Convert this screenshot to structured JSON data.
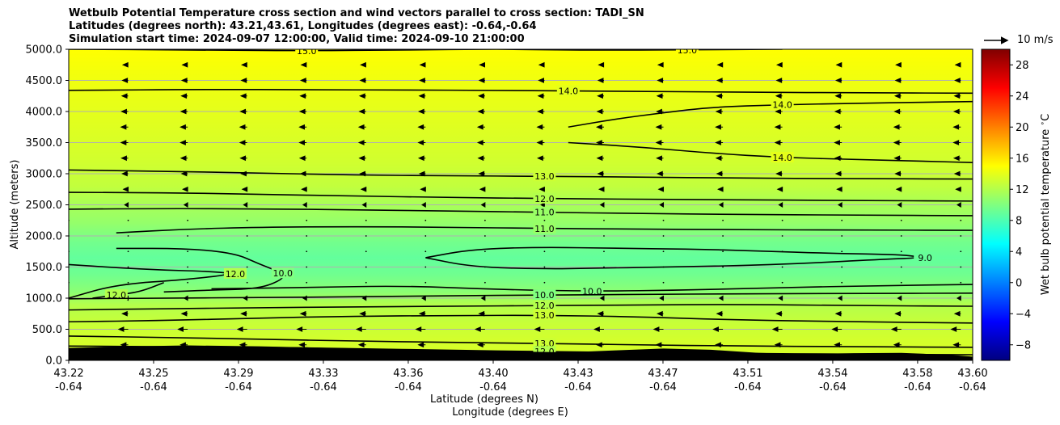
{
  "title_lines": [
    "Wetbulb Potential Temperature cross section and wind vectors parallel to cross section: TADI_SN",
    "Latitudes (degrees north): 43.21,43.61, Longitudes (degrees east): -0.64,-0.64",
    "Simulation start time: 2024-09-07 12:00:00, Valid time: 2024-09-10 21:00:00"
  ],
  "reference_vector_label": "10 m/s",
  "chart_data": {
    "type": "heatmap",
    "title": "Wetbulb Potential Temperature cross section and wind vectors parallel to cross section: TADI_SN",
    "xlabel": "Latitude (degrees N)",
    "xlabel2": "Longitude (degrees E)",
    "ylabel": "Altitude (meters)",
    "colorbar_label": "Wet bulb potential temperature $^\\circ$C",
    "xlim": [
      43.22,
      43.6
    ],
    "ylim": [
      0,
      5000
    ],
    "x_ticks": [
      {
        "lat": "43.22",
        "lon": "-0.64"
      },
      {
        "lat": "43.25",
        "lon": "-0.64"
      },
      {
        "lat": "43.29",
        "lon": "-0.64"
      },
      {
        "lat": "43.33",
        "lon": "-0.64"
      },
      {
        "lat": "43.36",
        "lon": "-0.64"
      },
      {
        "lat": "43.40",
        "lon": "-0.64"
      },
      {
        "lat": "43.43",
        "lon": "-0.64"
      },
      {
        "lat": "43.47",
        "lon": "-0.64"
      },
      {
        "lat": "43.51",
        "lon": "-0.64"
      },
      {
        "lat": "43.54",
        "lon": "-0.64"
      },
      {
        "lat": "43.58",
        "lon": "-0.64"
      },
      {
        "lat": "43.60",
        "lon": "-0.64"
      }
    ],
    "y_ticks": [
      {
        "value": 0,
        "label": "0.0"
      },
      {
        "value": 500,
        "label": "500.0"
      },
      {
        "value": 1000,
        "label": "1000.0"
      },
      {
        "value": 1500,
        "label": "1500.0"
      },
      {
        "value": 2000,
        "label": "2000.0"
      },
      {
        "value": 2500,
        "label": "2500.0"
      },
      {
        "value": 3000,
        "label": "3000.0"
      },
      {
        "value": 3500,
        "label": "3500.0"
      },
      {
        "value": 4000,
        "label": "4000.0"
      },
      {
        "value": 4500,
        "label": "4500.0"
      },
      {
        "value": 5000,
        "label": "5000.0"
      }
    ],
    "colorbar_range": [
      -10,
      30
    ],
    "colorbar_ticks": [
      {
        "value": -8,
        "label": "−8"
      },
      {
        "value": -4,
        "label": "−4"
      },
      {
        "value": 0,
        "label": "0"
      },
      {
        "value": 4,
        "label": "4"
      },
      {
        "value": 8,
        "label": "8"
      },
      {
        "value": 12,
        "label": "12"
      },
      {
        "value": 16,
        "label": "16"
      },
      {
        "value": 20,
        "label": "20"
      },
      {
        "value": 24,
        "label": "24"
      },
      {
        "value": 28,
        "label": "28"
      }
    ],
    "grid": "horizontal",
    "field_profile": [
      {
        "alt": 0,
        "value": 13.5
      },
      {
        "alt": 300,
        "value": 13.3
      },
      {
        "alt": 600,
        "value": 12.8
      },
      {
        "alt": 900,
        "value": 12.0
      },
      {
        "alt": 1100,
        "value": 10.5
      },
      {
        "alt": 1400,
        "value": 9.3
      },
      {
        "alt": 1650,
        "value": 8.9
      },
      {
        "alt": 1900,
        "value": 9.5
      },
      {
        "alt": 2200,
        "value": 10.8
      },
      {
        "alt": 2500,
        "value": 11.6
      },
      {
        "alt": 2800,
        "value": 12.6
      },
      {
        "alt": 3200,
        "value": 13.2
      },
      {
        "alt": 3800,
        "value": 13.8
      },
      {
        "alt": 4500,
        "value": 14.4
      },
      {
        "alt": 5000,
        "value": 15.0
      }
    ],
    "contours": [
      {
        "label": "15.0",
        "points": [
          [
            43.22,
            5000
          ],
          [
            43.27,
            4990
          ],
          [
            43.32,
            4975
          ],
          [
            43.36,
            4990
          ],
          [
            43.4,
            5000
          ]
        ]
      },
      {
        "label": "15.0",
        "points": [
          [
            43.4,
            5000
          ],
          [
            43.44,
            4985
          ],
          [
            43.48,
            4990
          ],
          [
            43.52,
            5000
          ]
        ]
      },
      {
        "label": "14.0",
        "points": [
          [
            43.22,
            4340
          ],
          [
            43.28,
            4355
          ],
          [
            43.32,
            4350
          ],
          [
            43.36,
            4345
          ],
          [
            43.4,
            4340
          ],
          [
            43.43,
            4330
          ],
          [
            43.47,
            4320
          ],
          [
            43.51,
            4310
          ],
          [
            43.55,
            4300
          ],
          [
            43.6,
            4295
          ]
        ]
      },
      {
        "label": "14.0",
        "points": [
          [
            43.43,
            3750
          ],
          [
            43.45,
            3880
          ],
          [
            43.47,
            3980
          ],
          [
            43.49,
            4070
          ],
          [
            43.52,
            4110
          ],
          [
            43.55,
            4130
          ],
          [
            43.58,
            4150
          ],
          [
            43.6,
            4160
          ]
        ]
      },
      {
        "label": "14.0",
        "points": [
          [
            43.43,
            3500
          ],
          [
            43.46,
            3430
          ],
          [
            43.49,
            3330
          ],
          [
            43.52,
            3260
          ],
          [
            43.55,
            3230
          ],
          [
            43.58,
            3200
          ],
          [
            43.6,
            3180
          ]
        ]
      },
      {
        "label": "13.0",
        "points": [
          [
            43.22,
            3060
          ],
          [
            43.26,
            3040
          ],
          [
            43.3,
            3010
          ],
          [
            43.34,
            2980
          ],
          [
            43.38,
            2965
          ],
          [
            43.42,
            2960
          ],
          [
            43.46,
            2945
          ],
          [
            43.5,
            2930
          ],
          [
            43.55,
            2920
          ],
          [
            43.6,
            2915
          ]
        ]
      },
      {
        "label": "12.0",
        "points": [
          [
            43.22,
            2700
          ],
          [
            43.26,
            2695
          ],
          [
            43.3,
            2670
          ],
          [
            43.34,
            2640
          ],
          [
            43.38,
            2620
          ],
          [
            43.42,
            2600
          ],
          [
            43.46,
            2590
          ],
          [
            43.5,
            2580
          ],
          [
            43.55,
            2570
          ],
          [
            43.6,
            2560
          ]
        ]
      },
      {
        "label": "11.0",
        "points": [
          [
            43.22,
            2430
          ],
          [
            43.26,
            2440
          ],
          [
            43.3,
            2435
          ],
          [
            43.34,
            2420
          ],
          [
            43.38,
            2400
          ],
          [
            43.42,
            2380
          ],
          [
            43.46,
            2360
          ],
          [
            43.5,
            2345
          ],
          [
            43.55,
            2335
          ],
          [
            43.6,
            2325
          ]
        ]
      },
      {
        "label": "11.0",
        "points": [
          [
            43.24,
            2050
          ],
          [
            43.27,
            2110
          ],
          [
            43.3,
            2140
          ],
          [
            43.34,
            2150
          ],
          [
            43.38,
            2140
          ],
          [
            43.42,
            2120
          ],
          [
            43.46,
            2110
          ],
          [
            43.5,
            2100
          ],
          [
            43.55,
            2095
          ],
          [
            43.6,
            2090
          ]
        ]
      },
      {
        "label": "9.0",
        "points": [
          [
            43.37,
            1650
          ],
          [
            43.39,
            1790
          ],
          [
            43.42,
            1820
          ],
          [
            43.45,
            1800
          ],
          [
            43.48,
            1790
          ],
          [
            43.51,
            1760
          ],
          [
            43.54,
            1720
          ],
          [
            43.57,
            1700
          ],
          [
            43.58,
            1650
          ],
          [
            43.56,
            1620
          ],
          [
            43.53,
            1560
          ],
          [
            43.5,
            1520
          ],
          [
            43.47,
            1500
          ],
          [
            43.44,
            1480
          ],
          [
            43.42,
            1470
          ],
          [
            43.39,
            1500
          ],
          [
            43.37,
            1650
          ]
        ]
      },
      {
        "label": "12.0",
        "points": [
          [
            43.22,
            1540
          ],
          [
            43.24,
            1490
          ],
          [
            43.26,
            1450
          ],
          [
            43.28,
            1430
          ],
          [
            43.29,
            1390
          ],
          [
            43.27,
            1300
          ],
          [
            43.24,
            1220
          ],
          [
            43.22,
            1000
          ]
        ]
      },
      {
        "label": "12.0",
        "points": [
          [
            43.26,
            1250
          ],
          [
            43.25,
            1100
          ],
          [
            43.24,
            1050
          ],
          [
            43.23,
            1000
          ]
        ]
      },
      {
        "label": "10.0",
        "points": [
          [
            43.26,
            1100
          ],
          [
            43.28,
            1130
          ],
          [
            43.3,
            1150
          ],
          [
            43.31,
            1300
          ],
          [
            43.31,
            1400
          ],
          [
            43.3,
            1550
          ],
          [
            43.29,
            1720
          ],
          [
            43.27,
            1800
          ],
          [
            43.24,
            1800
          ]
        ]
      },
      {
        "label": "10.0",
        "points": [
          [
            43.28,
            1150
          ],
          [
            43.32,
            1170
          ],
          [
            43.36,
            1200
          ],
          [
            43.4,
            1140
          ],
          [
            43.44,
            1110
          ],
          [
            43.48,
            1130
          ],
          [
            43.52,
            1170
          ],
          [
            43.56,
            1200
          ],
          [
            43.6,
            1220
          ]
        ]
      },
      {
        "label": "10.0",
        "points": [
          [
            43.22,
            990
          ],
          [
            43.26,
            1000
          ],
          [
            43.3,
            1010
          ],
          [
            43.34,
            1020
          ],
          [
            43.38,
            1040
          ],
          [
            43.42,
            1050
          ],
          [
            43.46,
            1060
          ],
          [
            43.5,
            1070
          ],
          [
            43.55,
            1075
          ],
          [
            43.6,
            1080
          ]
        ]
      },
      {
        "label": "12.0",
        "points": [
          [
            43.22,
            810
          ],
          [
            43.26,
            830
          ],
          [
            43.3,
            845
          ],
          [
            43.34,
            860
          ],
          [
            43.38,
            870
          ],
          [
            43.42,
            880
          ],
          [
            43.46,
            890
          ],
          [
            43.5,
            900
          ],
          [
            43.55,
            880
          ],
          [
            43.6,
            870
          ]
        ]
      },
      {
        "label": "13.0",
        "points": [
          [
            43.22,
            620
          ],
          [
            43.26,
            640
          ],
          [
            43.3,
            680
          ],
          [
            43.34,
            710
          ],
          [
            43.38,
            720
          ],
          [
            43.42,
            725
          ],
          [
            43.46,
            700
          ],
          [
            43.5,
            650
          ],
          [
            43.55,
            620
          ],
          [
            43.6,
            600
          ]
        ]
      },
      {
        "label": "13.0",
        "points": [
          [
            43.22,
            390
          ],
          [
            43.26,
            370
          ],
          [
            43.3,
            340
          ],
          [
            43.34,
            310
          ],
          [
            43.38,
            290
          ],
          [
            43.42,
            270
          ],
          [
            43.46,
            250
          ],
          [
            43.5,
            230
          ],
          [
            43.55,
            220
          ],
          [
            43.6,
            210
          ]
        ]
      },
      {
        "label": "12.0",
        "points": [
          [
            43.22,
            230
          ],
          [
            43.26,
            220
          ],
          [
            43.3,
            210
          ],
          [
            43.34,
            190
          ],
          [
            43.38,
            160
          ],
          [
            43.42,
            140
          ],
          [
            43.46,
            125
          ],
          [
            43.5,
            110
          ],
          [
            43.55,
            100
          ],
          [
            43.6,
            90
          ]
        ]
      }
    ],
    "terrain": [
      {
        "x": 43.22,
        "y": 200
      },
      {
        "x": 43.24,
        "y": 220
      },
      {
        "x": 43.27,
        "y": 240
      },
      {
        "x": 43.3,
        "y": 225
      },
      {
        "x": 43.33,
        "y": 200
      },
      {
        "x": 43.36,
        "y": 180
      },
      {
        "x": 43.39,
        "y": 150
      },
      {
        "x": 43.41,
        "y": 140
      },
      {
        "x": 43.43,
        "y": 130
      },
      {
        "x": 43.45,
        "y": 160
      },
      {
        "x": 43.47,
        "y": 190
      },
      {
        "x": 43.49,
        "y": 170
      },
      {
        "x": 43.51,
        "y": 120
      },
      {
        "x": 43.53,
        "y": 100
      },
      {
        "x": 43.55,
        "y": 115
      },
      {
        "x": 43.57,
        "y": 120
      },
      {
        "x": 43.59,
        "y": 90
      },
      {
        "x": 43.6,
        "y": 60
      }
    ],
    "wind_levels": [
      {
        "alt": 4750,
        "u": -2.2
      },
      {
        "alt": 4500,
        "u": -2.4
      },
      {
        "alt": 4250,
        "u": -2.6
      },
      {
        "alt": 4000,
        "u": -2.8
      },
      {
        "alt": 3750,
        "u": -3.0
      },
      {
        "alt": 3500,
        "u": -3.0
      },
      {
        "alt": 3250,
        "u": -2.8
      },
      {
        "alt": 3000,
        "u": -2.5
      },
      {
        "alt": 2750,
        "u": -2.0
      },
      {
        "alt": 2500,
        "u": -1.5
      },
      {
        "alt": 2250,
        "u": -0.5
      },
      {
        "alt": 2000,
        "u": -0.2
      },
      {
        "alt": 1750,
        "u": 0.2
      },
      {
        "alt": 1500,
        "u": 0.1
      },
      {
        "alt": 1250,
        "u": -0.3
      },
      {
        "alt": 1000,
        "u": -1.5
      },
      {
        "alt": 750,
        "u": -2.5
      },
      {
        "alt": 500,
        "u": -4.0
      },
      {
        "alt": 250,
        "u": -3.0
      }
    ],
    "wind_x": [
      43.22,
      43.245,
      43.27,
      43.295,
      43.32,
      43.345,
      43.37,
      43.395,
      43.42,
      43.445,
      43.47,
      43.495,
      43.52,
      43.545,
      43.57,
      43.595
    ]
  }
}
